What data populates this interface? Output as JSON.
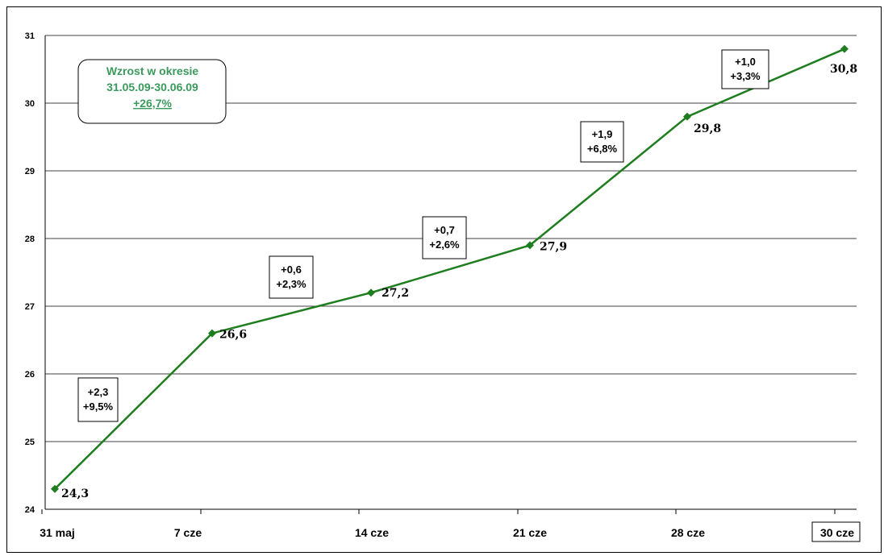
{
  "chart_data": {
    "type": "line",
    "categories": [
      "31 maj",
      "7 cze",
      "14 cze",
      "21 cze",
      "28 cze",
      "30 cze"
    ],
    "values": [
      24.3,
      26.6,
      27.2,
      27.9,
      29.8,
      30.8
    ],
    "data_labels": [
      "24,3",
      "26,6",
      "27,2",
      "27,9",
      "29,8",
      "30,8"
    ],
    "ylim": [
      24,
      31
    ],
    "yticks": [
      24,
      25,
      26,
      27,
      28,
      29,
      30,
      31
    ],
    "grid": true,
    "line_color": "#1e7d1e",
    "change_annotations": [
      {
        "abs": "+2,3",
        "pct": "+9,5%"
      },
      {
        "abs": "+0,6",
        "pct": "+2,3%"
      },
      {
        "abs": "+0,7",
        "pct": "+2,6%"
      },
      {
        "abs": "+1,9",
        "pct": "+6,8%"
      },
      {
        "abs": "+1,0",
        "pct": "+3,3%"
      }
    ],
    "summary": {
      "line1": "Wzrost w okresie",
      "line2": "31.05.09-30.06.09",
      "line3": "+26,7%",
      "color": "#3a9a5b"
    }
  }
}
